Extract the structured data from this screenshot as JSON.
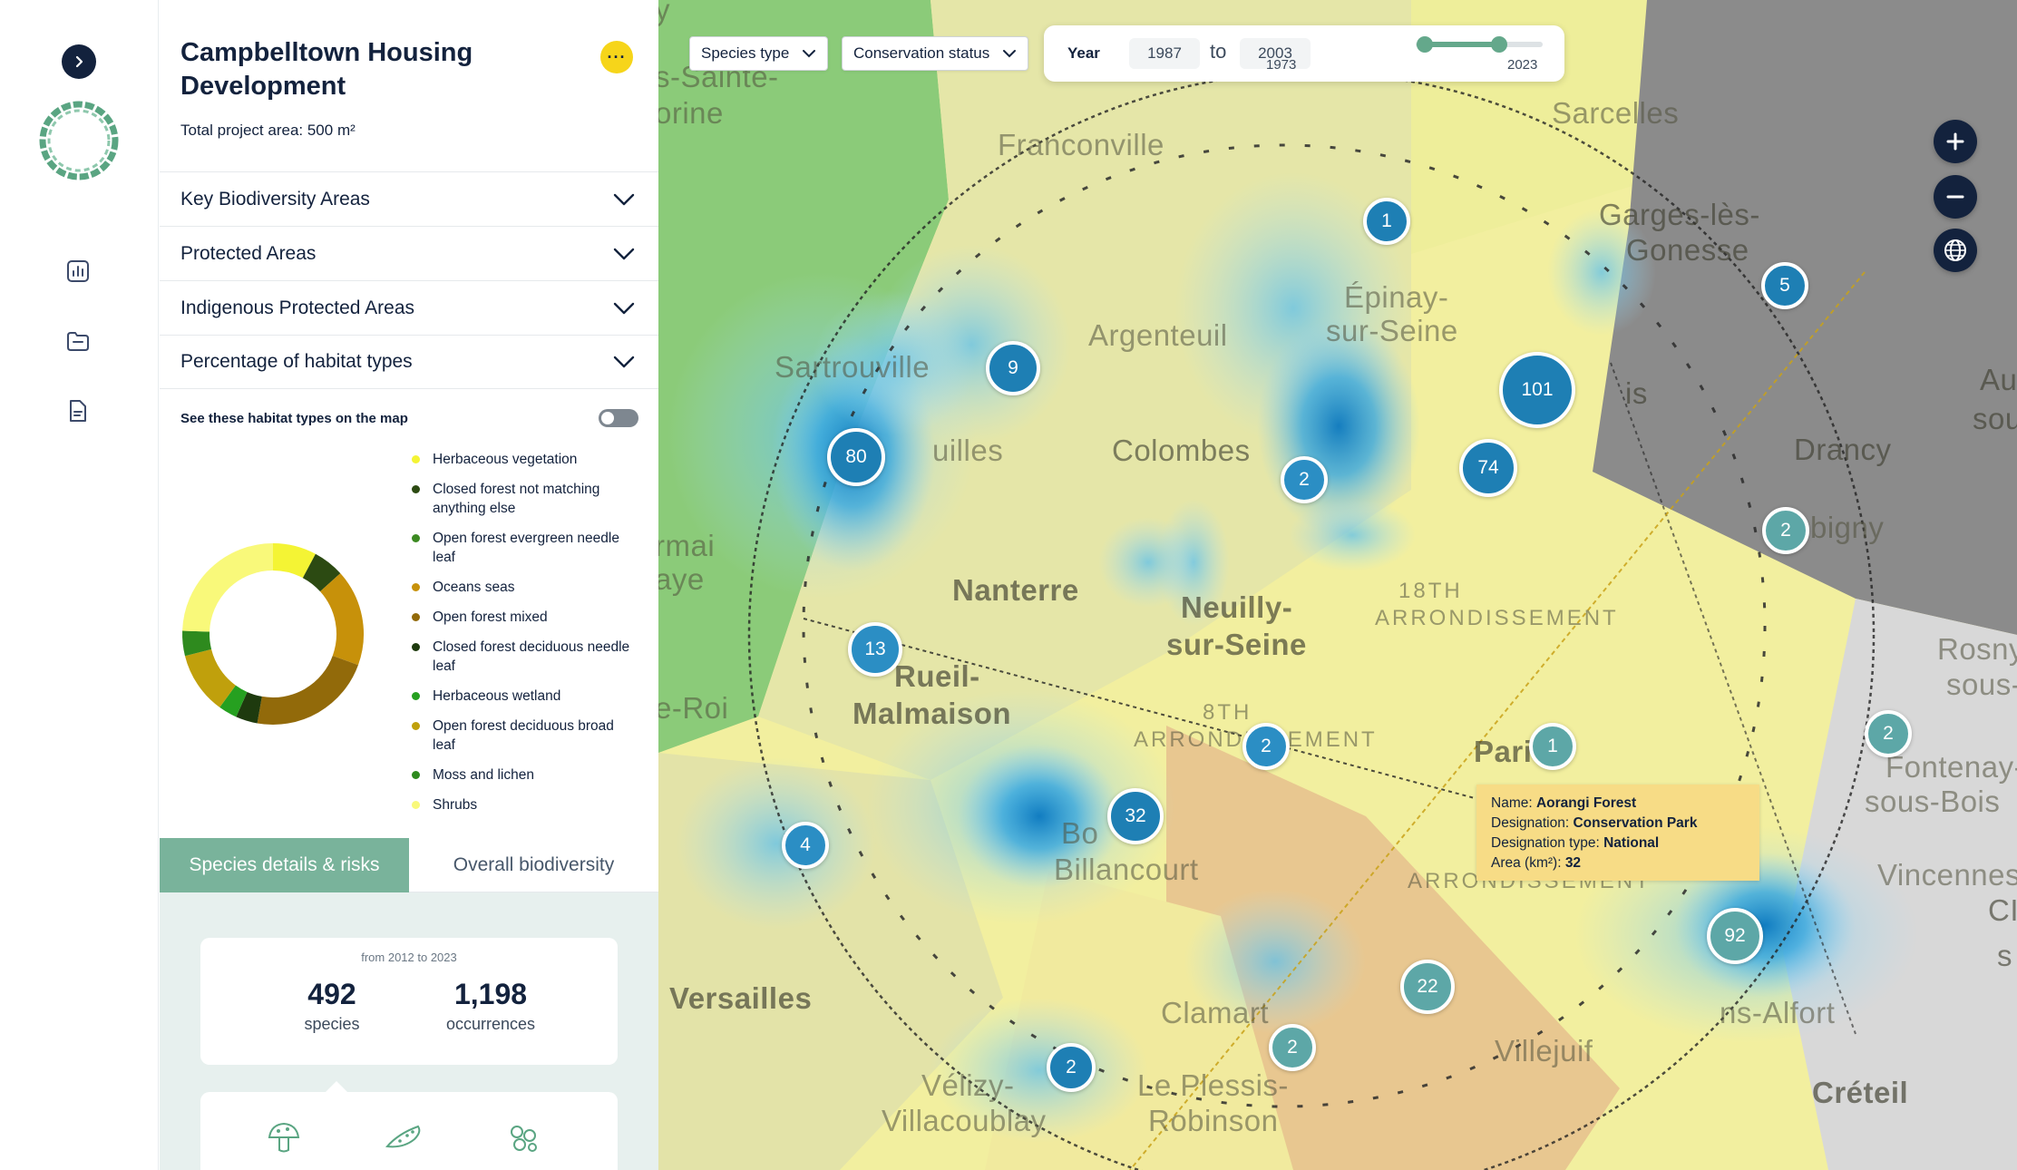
{
  "project": {
    "title": "Campbelltown Housing Development",
    "area": "Total project area: 500 m²"
  },
  "accordions": [
    {
      "label": "Key Biodiversity Areas"
    },
    {
      "label": "Protected Areas"
    },
    {
      "label": "Indigenous Protected Areas"
    },
    {
      "label": "Percentage of habitat types"
    }
  ],
  "habitat": {
    "toggle_label": "See these habitat types on the map",
    "toggle_on": false,
    "legend": [
      {
        "label": "Herbaceous vegetation",
        "color": "#f4f434"
      },
      {
        "label": "Closed forest not matching anything else",
        "color": "#2c4a12"
      },
      {
        "label": "Open forest evergreen needle leaf",
        "color": "#3c8a22"
      },
      {
        "label": "Oceans seas",
        "color": "#c7910a"
      },
      {
        "label": "Open forest mixed",
        "color": "#926a0a"
      },
      {
        "label": "Closed forest deciduous needle leaf",
        "color": "#1e3a0e"
      },
      {
        "label": "Herbaceous wetland",
        "color": "#26a020"
      },
      {
        "label": "Open forest deciduous broad leaf",
        "color": "#c0a00c"
      },
      {
        "label": "Moss and lichen",
        "color": "#2e8a1e"
      },
      {
        "label": "Shrubs",
        "color": "#f9f97a"
      }
    ]
  },
  "tabs": {
    "active": "Species details & risks",
    "inactive": "Overall biodiversity"
  },
  "stats": {
    "range": "from 2012 to 2023",
    "species_count": "492",
    "species_label": "species",
    "occurrences_count": "1,198",
    "occurrences_label": "occurrences"
  },
  "taxa_icons": [
    "mushroom-icon",
    "cucumber-icon",
    "bacteria-icon"
  ],
  "filters": {
    "species_type": "Species type",
    "conservation_status": "Conservation status"
  },
  "year_filter": {
    "label": "Year",
    "from": "1987",
    "to_word": "to",
    "to": "2003",
    "slider_min_label": "1973",
    "slider_max_label": "2023"
  },
  "map": {
    "places": [
      "y",
      "s-Sainte-",
      "orine",
      "Franconville",
      "Sarcelles",
      "Garges-lès-",
      "Gonesse",
      "Épinay-",
      "sur-Seine",
      "Argenteuil",
      "Sartrouville",
      "uilles",
      "Colombes",
      "is",
      "Au",
      "sou",
      "Drancy",
      "bigny",
      "rmai",
      "aye",
      "Nanterre",
      "Neuilly-",
      "sur-Seine",
      "18TH",
      "ARRONDISSEMENT",
      "Rueil-",
      "Malmaison",
      "e-Roi",
      "ARRONDISSEMENT",
      "8TH",
      "Paris",
      "Rosny",
      "sous-B",
      "Fontenay-",
      "sous-Bois",
      "Vincennes",
      "Bo",
      "Billancourt",
      "ARRONDISSEMENT",
      "Versailles",
      "Clamart",
      "Vélizy-",
      "Villacoublay",
      "Le Plessis-",
      "Robinson",
      "Villejuif",
      "ns-Alfort",
      "Créteil",
      "CI",
      "s"
    ],
    "clusters": [
      "1",
      "5",
      "9",
      "101",
      "80",
      "74",
      "2",
      "2",
      "13",
      "2",
      "1",
      "2",
      "4",
      "32",
      "92",
      "22",
      "2",
      "2"
    ]
  },
  "tooltip": {
    "name_label": "Name:",
    "name": "Aorangi Forest",
    "designation_label": "Designation:",
    "designation": "Conservation Park",
    "type_label": "Designation type:",
    "type": "National",
    "area_label": "Area (km²):",
    "area": "32"
  },
  "colors": {
    "navy": "#13223d",
    "accent_green": "#79b39b",
    "slider_green": "#64a88b",
    "more_button": "#f6d51a",
    "tooltip_bg": "#f7dc86",
    "stats_bg": "#e7f0ee"
  }
}
